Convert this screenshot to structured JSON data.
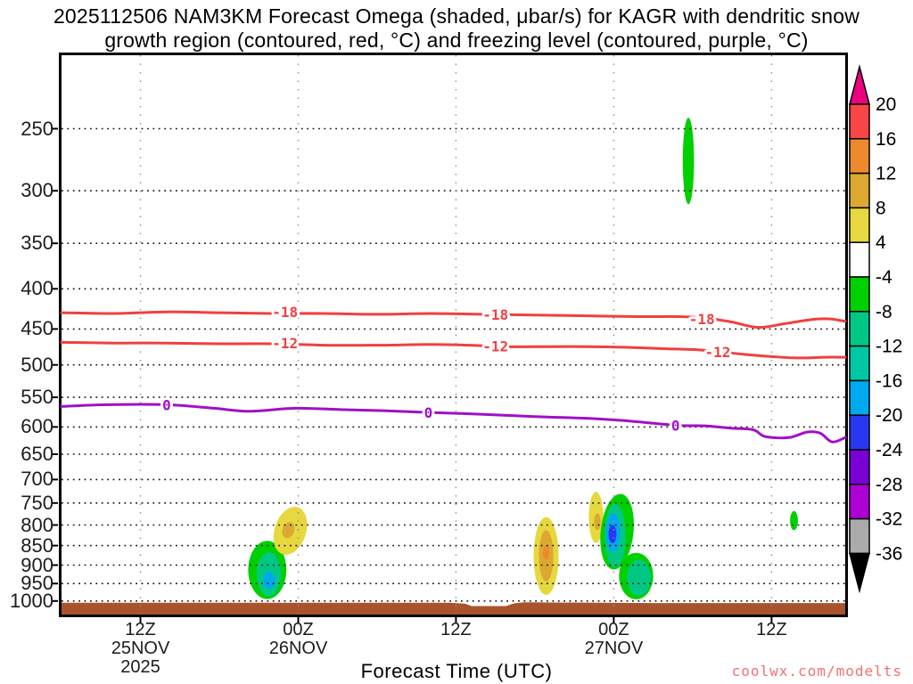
{
  "title": {
    "line1": "2025112506 NAM3KM Forecast Omega (shaded, μbar/s) for KAGR with dendritic snow",
    "line2": "growth region (contoured, red, °C) and freezing level (contoured, purple, °C)"
  },
  "watermark": {
    "text": "coolwx.com/modelts",
    "color": "#F47070"
  },
  "chart_data": {
    "type": "heatmap",
    "subtype": "time-pressure-cross-section",
    "title": "2025112506 NAM3KM Forecast Omega (shaded, μbar/s) for KAGR with dendritic snow growth region (contoured, red, °C) and freezing level (contoured, purple, °C)",
    "xlabel": "Forecast Time (UTC)",
    "ylabel": "",
    "grid": true,
    "y_scale": "log-pressure",
    "y_ticks": [
      250,
      300,
      350,
      400,
      450,
      500,
      550,
      600,
      650,
      700,
      750,
      800,
      850,
      900,
      950,
      1000
    ],
    "x_ticks": [
      {
        "t": 6,
        "lines": [
          "12Z",
          "25NOV",
          "2025"
        ]
      },
      {
        "t": 18,
        "lines": [
          "00Z",
          "26NOV"
        ]
      },
      {
        "t": 30,
        "lines": [
          "12Z"
        ]
      },
      {
        "t": 42,
        "lines": [
          "00Z",
          "27NOV"
        ]
      },
      {
        "t": 54,
        "lines": [
          "12Z"
        ]
      }
    ],
    "axis_ranges": {
      "pressure_top_hpa": 201.5,
      "pressure_bottom_hpa": 1040.5,
      "time_span_hours": 59.6
    },
    "colorbar": {
      "title": "Omega (μbar/s)",
      "boundaries": [
        20,
        16,
        12,
        8,
        4,
        -4,
        -8,
        -12,
        -16,
        -20,
        -24,
        -28,
        -32,
        -36
      ],
      "segment_colors": [
        "#F84545",
        "#EE8A2E",
        "#DCA832",
        "#E6D83E",
        "#FFFFFF",
        "#00CF00",
        "#00C884",
        "#00C8A4",
        "#00A8F0",
        "#2838F0",
        "#7A00D6",
        "#AC00D6",
        "#ABABAB"
      ],
      "over_color": "#EC0080",
      "under_color": "#000000"
    },
    "contours": [
      {
        "id": "dendritic-growth--18",
        "label": "-18",
        "color": "#F04040",
        "points": [
          [
            0,
            429
          ],
          [
            4,
            430
          ],
          [
            8,
            428
          ],
          [
            12,
            429
          ],
          [
            16,
            430
          ],
          [
            20,
            430
          ],
          [
            24,
            431
          ],
          [
            28,
            430
          ],
          [
            32,
            431
          ],
          [
            36,
            432
          ],
          [
            40,
            433
          ],
          [
            44,
            434
          ],
          [
            47,
            434
          ],
          [
            49,
            436
          ],
          [
            51,
            441
          ],
          [
            53,
            448
          ],
          [
            55,
            443
          ],
          [
            56.5,
            439
          ],
          [
            57.5,
            437
          ],
          [
            58.5,
            437
          ],
          [
            59.6,
            440
          ]
        ],
        "label_positions": [
          [
            17,
            428
          ],
          [
            33,
            431
          ],
          [
            48.7,
            437
          ]
        ]
      },
      {
        "id": "dendritic-growth--12",
        "label": "-12",
        "color": "#F04040",
        "points": [
          [
            0,
            468
          ],
          [
            4,
            469
          ],
          [
            8,
            469
          ],
          [
            12,
            470
          ],
          [
            16,
            470
          ],
          [
            20,
            472
          ],
          [
            24,
            472
          ],
          [
            28,
            471
          ],
          [
            31,
            472
          ],
          [
            34,
            474
          ],
          [
            37,
            474
          ],
          [
            40,
            474
          ],
          [
            43,
            475
          ],
          [
            46,
            477
          ],
          [
            48,
            478
          ],
          [
            50,
            481
          ],
          [
            52,
            485
          ],
          [
            54,
            488
          ],
          [
            56,
            490
          ],
          [
            58,
            489
          ],
          [
            59.6,
            489
          ]
        ],
        "label_positions": [
          [
            17,
            469
          ],
          [
            33,
            473
          ],
          [
            49.9,
            481
          ]
        ]
      },
      {
        "id": "freezing-level-0",
        "label": "0",
        "color": "#A010C8",
        "points": [
          [
            0,
            565
          ],
          [
            3.5,
            562
          ],
          [
            8,
            562
          ],
          [
            11.6,
            568
          ],
          [
            14.3,
            573
          ],
          [
            17.7,
            568
          ],
          [
            21.1,
            570
          ],
          [
            24.5,
            572
          ],
          [
            27.9,
            575
          ],
          [
            31.9,
            578
          ],
          [
            36,
            582
          ],
          [
            40.1,
            585
          ],
          [
            42.8,
            589
          ],
          [
            46.7,
            597
          ],
          [
            48.9,
            598
          ],
          [
            50.9,
            602
          ],
          [
            52.6,
            605
          ],
          [
            53.5,
            617
          ],
          [
            55.3,
            619
          ],
          [
            56.7,
            609
          ],
          [
            57.7,
            611
          ],
          [
            58.6,
            627
          ],
          [
            59.6,
            619
          ]
        ],
        "label_positions": [
          [
            8,
            562
          ],
          [
            27.9,
            575
          ],
          [
            46.7,
            597
          ]
        ]
      }
    ],
    "shaded_regions": [
      {
        "value_range": "-8 to -4",
        "color": "#00CF00",
        "t0": 14.2,
        "t1": 17.1,
        "p0": 838,
        "p1": 994,
        "rot": 0
      },
      {
        "value_range": "-12 to -8",
        "color": "#00C884",
        "t0": 14.85,
        "t1": 16.7,
        "p0": 866,
        "p1": 986,
        "rot": 0
      },
      {
        "value_range": "-20 to -16",
        "color": "#00A8F0",
        "t0": 15.35,
        "t1": 16.25,
        "p0": 918,
        "p1": 965,
        "rot": 0
      },
      {
        "value_range": "4 to 8",
        "color": "#E6D83E",
        "t0": 16.2,
        "t1": 18.6,
        "p0": 757,
        "p1": 875,
        "rot": 18
      },
      {
        "value_range": "8 to 12",
        "color": "#DCA832",
        "t0": 16.8,
        "t1": 17.7,
        "p0": 793,
        "p1": 832,
        "rot": 18
      },
      {
        "value_range": "4 to 8",
        "color": "#E6D83E",
        "t0": 35.9,
        "t1": 37.8,
        "p0": 782,
        "p1": 982,
        "rot": 0
      },
      {
        "value_range": "8 to 12",
        "color": "#DCA832",
        "t0": 36.3,
        "t1": 37.4,
        "p0": 812,
        "p1": 944,
        "rot": 0
      },
      {
        "value_range": "12 to 16",
        "color": "#EE8A2E",
        "t0": 36.6,
        "t1": 37.1,
        "p0": 850,
        "p1": 886,
        "rot": 0
      },
      {
        "value_range": "4 to 8",
        "color": "#E6D83E",
        "t0": 40.1,
        "t1": 41.2,
        "p0": 726,
        "p1": 843,
        "rot": 0
      },
      {
        "value_range": "8 to 12",
        "color": "#DCA832",
        "t0": 40.5,
        "t1": 41.0,
        "p0": 773,
        "p1": 812,
        "rot": 0
      },
      {
        "value_range": "-8 to -4",
        "color": "#00CF00",
        "t0": 41.0,
        "t1": 43.5,
        "p0": 730,
        "p1": 912,
        "rot": 6
      },
      {
        "value_range": "-8 to -4",
        "color": "#00CF00",
        "t0": 42.4,
        "t1": 45.0,
        "p0": 868,
        "p1": 995,
        "rot": 0
      },
      {
        "value_range": "-12 to -8",
        "color": "#00C884",
        "t0": 41.3,
        "t1": 42.9,
        "p0": 752,
        "p1": 906,
        "rot": 0
      },
      {
        "value_range": "-20 to -16",
        "color": "#00A8F0",
        "t0": 41.4,
        "t1": 42.5,
        "p0": 773,
        "p1": 866,
        "rot": 0
      },
      {
        "value_range": "-24 to -20",
        "color": "#2838F0",
        "t0": 41.6,
        "t1": 42.2,
        "p0": 800,
        "p1": 844,
        "rot": 0
      },
      {
        "value_range": "-12 to -8",
        "color": "#00C884",
        "t0": 43.0,
        "t1": 44.8,
        "p0": 886,
        "p1": 985,
        "rot": 0
      },
      {
        "value_range": "-8 to -4",
        "color": "#00CF00",
        "t0": 47.25,
        "t1": 48.1,
        "p0": 242,
        "p1": 312,
        "rot": 0
      },
      {
        "value_range": "-8 to -4",
        "color": "#00CF00",
        "t0": 55.4,
        "t1": 56.0,
        "p0": 768,
        "p1": 812,
        "rot": 0
      }
    ],
    "terrain_surface": [
      [
        0,
        1005
      ],
      [
        29.5,
        1005
      ],
      [
        30.7,
        1008
      ],
      [
        31.2,
        1015
      ],
      [
        33.8,
        1015
      ],
      [
        34.4,
        1007
      ],
      [
        35.2,
        1004
      ],
      [
        45,
        1006
      ],
      [
        59.6,
        1006
      ]
    ],
    "terrain_color": "#A9532C"
  }
}
